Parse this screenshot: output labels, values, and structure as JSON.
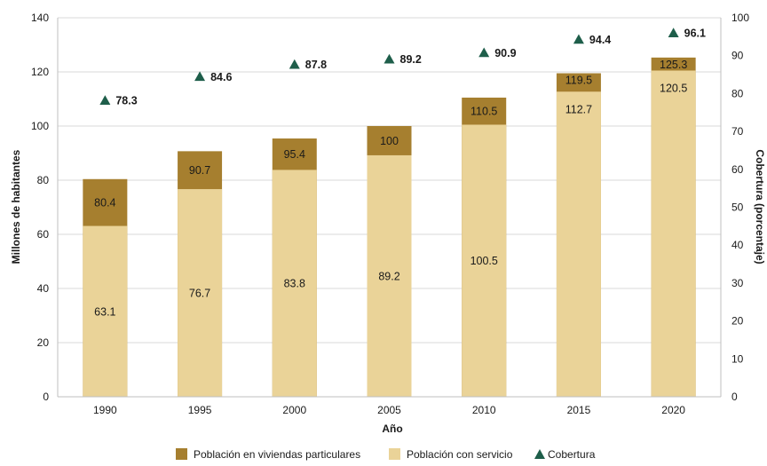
{
  "chart_data": {
    "type": "bar",
    "stacked": false,
    "overlap": true,
    "categories": [
      "1990",
      "1995",
      "2000",
      "2005",
      "2010",
      "2015",
      "2020"
    ],
    "series": [
      {
        "name": "Población en viviendas particulares",
        "values": [
          80.4,
          90.7,
          95.4,
          100,
          110.5,
          119.5,
          125.3
        ],
        "labels": [
          "80.4",
          "90.7",
          "95.4",
          "100",
          "110.5",
          "119.5",
          "125.3"
        ],
        "color": "#a67f2f",
        "axis": "left"
      },
      {
        "name": "Población con servicio",
        "values": [
          63.1,
          76.7,
          83.8,
          89.2,
          100.5,
          112.7,
          120.5
        ],
        "labels": [
          "63.1",
          "76.7",
          "83.8",
          "89.2",
          "100.5",
          "112.7",
          "120.5"
        ],
        "color": "#ead398",
        "axis": "left"
      },
      {
        "name": "Cobertura",
        "type": "scatter",
        "marker": "triangle",
        "values": [
          78.3,
          84.6,
          87.8,
          89.2,
          90.9,
          94.4,
          96.1
        ],
        "labels": [
          "78.3",
          "84.6",
          "87.8",
          "89.2",
          "90.9",
          "94.4",
          "96.1"
        ],
        "color": "#1e5e4a",
        "axis": "right"
      }
    ],
    "xlabel": "Año",
    "ylabel": "Millones de habitantes",
    "y2label": "Cobertura (porcentaje)",
    "ylim": [
      0,
      140
    ],
    "y2lim": [
      0,
      100
    ],
    "yticks": [
      "0",
      "20",
      "40",
      "60",
      "80",
      "100",
      "120",
      "140"
    ],
    "y2ticks": [
      "0",
      "10",
      "20",
      "30",
      "40",
      "50",
      "60",
      "70",
      "80",
      "90",
      "100"
    ],
    "grid": true,
    "legend_position": "bottom"
  }
}
